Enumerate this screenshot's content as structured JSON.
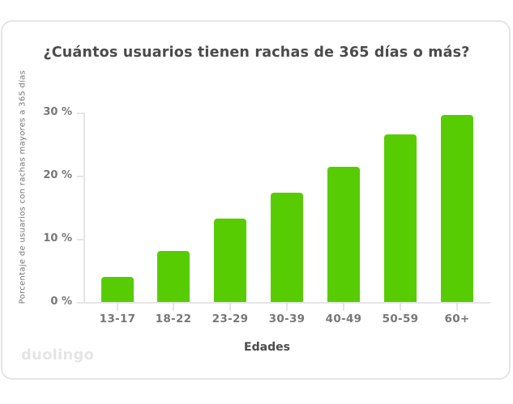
{
  "chart_data": {
    "type": "bar",
    "title": "¿Cuántos usuarios tienen rachas de 365 días o más?",
    "xlabel": "Edades",
    "ylabel": "Porcentaje de usuarios con rachas mayores a 365 días",
    "categories": [
      "13-17",
      "18-22",
      "23-29",
      "30-39",
      "40-49",
      "50-59",
      "60+"
    ],
    "values": [
      4.0,
      8.1,
      13.2,
      17.3,
      21.4,
      26.5,
      29.6
    ],
    "unit": "%",
    "ylim": [
      0,
      30
    ],
    "yticks": [
      "0 %",
      "10 %",
      "20 %",
      "30 %"
    ],
    "grid": false,
    "bar_color": "#58cc02"
  },
  "branding": {
    "logo_text": "duolingo"
  }
}
